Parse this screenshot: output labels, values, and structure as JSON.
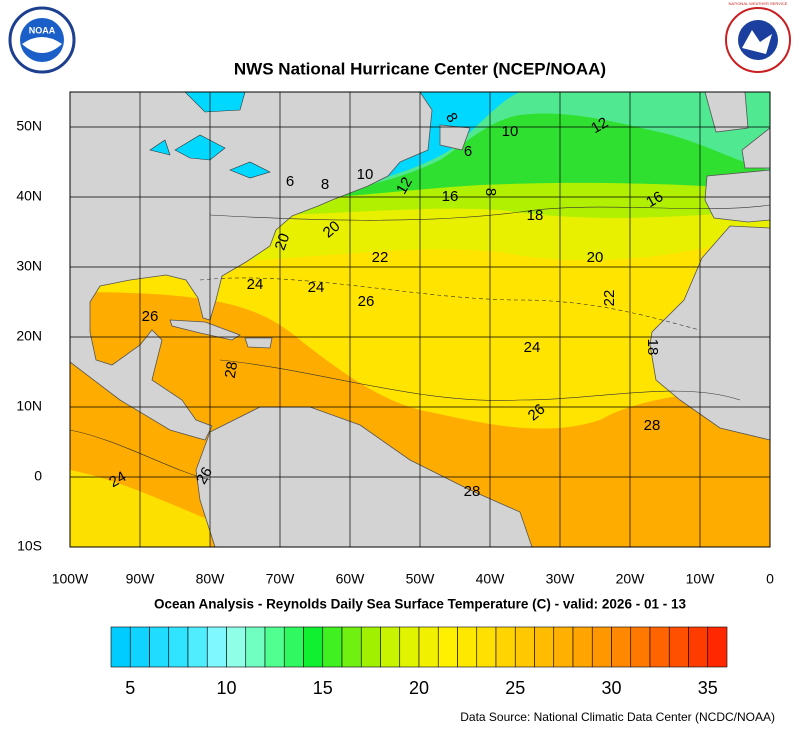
{
  "title": "NWS National Hurricane Center (NCEP/NOAA)",
  "logos": {
    "noaa": "NOAA",
    "nws": "NATIONAL WEATHER SERVICE"
  },
  "map": {
    "lon_labels": [
      "100W",
      "90W",
      "80W",
      "70W",
      "60W",
      "50W",
      "40W",
      "30W",
      "20W",
      "10W",
      "0"
    ],
    "lat_labels": [
      "50N",
      "40N",
      "30N",
      "20N",
      "10N",
      "0",
      "10S"
    ],
    "contour_labels": [
      "8",
      "10",
      "12",
      "6",
      "6",
      "8",
      "10",
      "12",
      "16",
      "8",
      "16",
      "18",
      "20",
      "20",
      "22",
      "20",
      "24",
      "24",
      "26",
      "22",
      "26",
      "24",
      "18",
      "28",
      "26",
      "28",
      "24",
      "26",
      "28"
    ]
  },
  "subtitle": "Ocean Analysis - Reynolds Daily Sea Surface Temperature (C) - valid: 2026 - 01 - 13",
  "colorbar": {
    "labels": [
      "5",
      "10",
      "15",
      "20",
      "25",
      "30",
      "35"
    ],
    "colors": [
      "#00ccff",
      "#10d4ff",
      "#20dcff",
      "#30e4ff",
      "#50ecff",
      "#80f8ff",
      "#90ffe8",
      "#70ffc0",
      "#50ff90",
      "#30f860",
      "#10f030",
      "#40f020",
      "#70f010",
      "#a0f000",
      "#c8f400",
      "#e0f400",
      "#f0f000",
      "#fff000",
      "#ffe800",
      "#ffe000",
      "#ffd400",
      "#ffc800",
      "#ffbc00",
      "#ffb000",
      "#ffa400",
      "#ff9800",
      "#ff8800",
      "#ff7800",
      "#ff6400",
      "#ff5000",
      "#ff3c00",
      "#ff2800"
    ]
  },
  "source": "Data Source: National Climatic Data Center (NCDC/NOAA)"
}
